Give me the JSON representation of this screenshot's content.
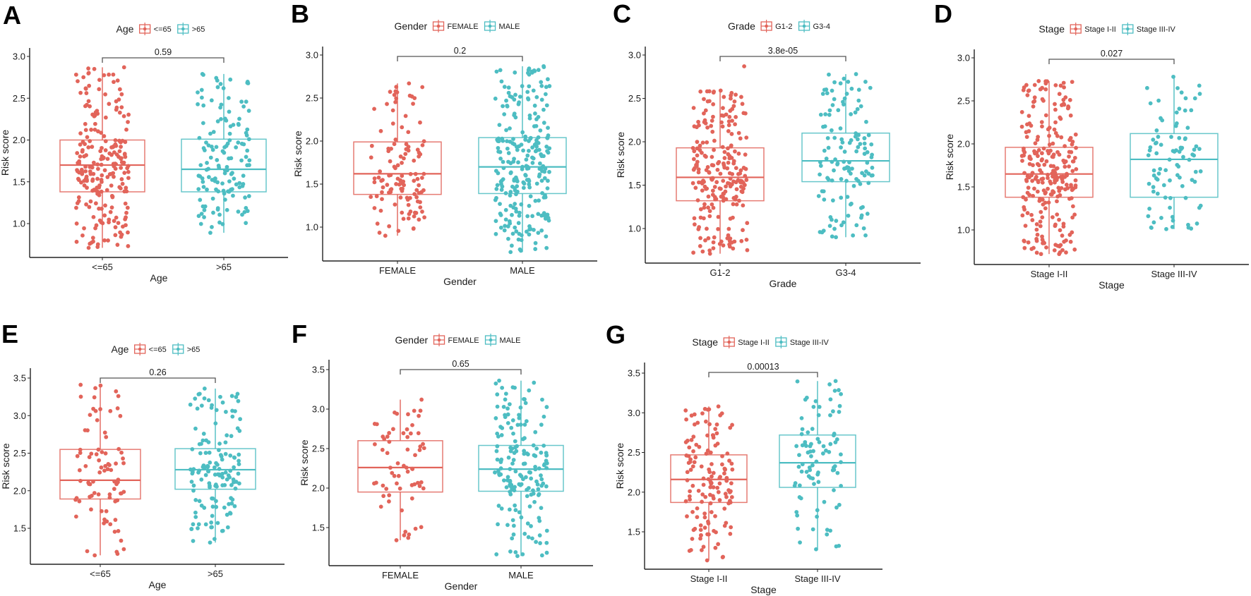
{
  "colors": {
    "group1": "#E2645A",
    "group2": "#4DBDC2",
    "axis": "#222222",
    "bracket": "#555555"
  },
  "chart_data": [
    {
      "panel": "A",
      "type": "box",
      "legend_title": "Age",
      "xlabel": "Age",
      "ylabel": "Risk score",
      "categories": [
        "<=65",
        ">65"
      ],
      "ylim": [
        0.6,
        3.1
      ],
      "yticks": [
        "1.0",
        "1.5",
        "2.0",
        "2.5",
        "3.0"
      ],
      "p_value": "0.59",
      "legend_position": "top",
      "series": [
        {
          "name": "<=65",
          "min": 0.71,
          "q1": 1.38,
          "median": 1.7,
          "q3": 2.0,
          "max": 2.87,
          "n_points": 230
        },
        {
          "name": ">65",
          "min": 0.89,
          "q1": 1.38,
          "median": 1.65,
          "q3": 2.01,
          "max": 2.79,
          "n_points": 140
        }
      ]
    },
    {
      "panel": "B",
      "type": "box",
      "legend_title": "Gender",
      "xlabel": "Gender",
      "ylabel": "Risk score",
      "categories": [
        "FEMALE",
        "MALE"
      ],
      "ylim": [
        0.6,
        3.1
      ],
      "yticks": [
        "1.0",
        "1.5",
        "2.0",
        "2.5",
        "3.0"
      ],
      "p_value": "0.2",
      "legend_position": "top",
      "series": [
        {
          "name": "FEMALE",
          "min": 0.9,
          "q1": 1.38,
          "median": 1.62,
          "q3": 1.99,
          "max": 2.67,
          "n_points": 120
        },
        {
          "name": "MALE",
          "min": 0.71,
          "q1": 1.39,
          "median": 1.7,
          "q3": 2.04,
          "max": 2.87,
          "n_points": 250
        }
      ]
    },
    {
      "panel": "C",
      "type": "box",
      "legend_title": "Grade",
      "xlabel": "Grade",
      "ylabel": "Risk score",
      "categories": [
        "G1-2",
        "G3-4"
      ],
      "ylim": [
        0.6,
        3.1
      ],
      "yticks": [
        "1.0",
        "1.5",
        "2.0",
        "2.5",
        "3.0"
      ],
      "p_value": "3.8e-05",
      "legend_position": "top",
      "series": [
        {
          "name": "G1-2",
          "min": 0.71,
          "q1": 1.32,
          "median": 1.59,
          "q3": 1.93,
          "max": 2.59,
          "outliers": [
            2.87
          ],
          "n_points": 230
        },
        {
          "name": "G3-4",
          "min": 0.9,
          "q1": 1.54,
          "median": 1.78,
          "q3": 2.1,
          "max": 2.78,
          "n_points": 130
        }
      ]
    },
    {
      "panel": "D",
      "type": "box",
      "legend_title": "Stage",
      "xlabel": "Stage",
      "ylabel": "Risk score",
      "categories": [
        "Stage I-II",
        "Stage III-IV"
      ],
      "ylim": [
        0.6,
        3.1
      ],
      "yticks": [
        "1.0",
        "1.5",
        "2.0",
        "2.5",
        "3.0"
      ],
      "p_value": "0.027",
      "legend_position": "top",
      "series": [
        {
          "name": "Stage I-II",
          "min": 0.72,
          "q1": 1.38,
          "median": 1.65,
          "q3": 1.96,
          "max": 2.73,
          "n_points": 260
        },
        {
          "name": "Stage III-IV",
          "min": 1.01,
          "q1": 1.38,
          "median": 1.82,
          "q3": 2.12,
          "max": 2.78,
          "n_points": 90
        }
      ]
    },
    {
      "panel": "E",
      "type": "box",
      "legend_title": "Age",
      "xlabel": "Age",
      "ylabel": "Risk score",
      "categories": [
        "<=65",
        ">65"
      ],
      "ylim": [
        1.02,
        3.63
      ],
      "yticks": [
        "1.5",
        "2.0",
        "2.5",
        "3.0",
        "3.5"
      ],
      "p_value": "0.26",
      "legend_position": "top",
      "series": [
        {
          "name": "<=65",
          "min": 1.14,
          "q1": 1.89,
          "median": 2.14,
          "q3": 2.55,
          "max": 3.41,
          "n_points": 85
        },
        {
          "name": ">65",
          "min": 1.31,
          "q1": 2.02,
          "median": 2.28,
          "q3": 2.56,
          "max": 3.36,
          "n_points": 140
        }
      ]
    },
    {
      "panel": "F",
      "type": "box",
      "legend_title": "Gender",
      "xlabel": "Gender",
      "ylabel": "Risk score",
      "categories": [
        "FEMALE",
        "MALE"
      ],
      "ylim": [
        1.02,
        3.63
      ],
      "yticks": [
        "1.5",
        "2.0",
        "2.5",
        "3.0",
        "3.5"
      ],
      "p_value": "0.65",
      "legend_position": "top",
      "series": [
        {
          "name": "FEMALE",
          "min": 1.34,
          "q1": 1.95,
          "median": 2.26,
          "q3": 2.6,
          "max": 3.12,
          "n_points": 65
        },
        {
          "name": "MALE",
          "min": 1.14,
          "q1": 1.96,
          "median": 2.24,
          "q3": 2.54,
          "max": 3.36,
          "n_points": 170
        }
      ]
    },
    {
      "panel": "G",
      "type": "box",
      "legend_title": "Stage",
      "xlabel": "Stage",
      "ylabel": "Risk score",
      "categories": [
        "Stage I-II",
        "Stage III-IV"
      ],
      "ylim": [
        1.02,
        3.63
      ],
      "yticks": [
        "1.5",
        "2.0",
        "2.5",
        "3.0",
        "3.5"
      ],
      "p_value": "0.00013",
      "legend_position": "top",
      "series": [
        {
          "name": "Stage I-II",
          "min": 1.14,
          "q1": 1.87,
          "median": 2.16,
          "q3": 2.47,
          "max": 3.08,
          "n_points": 140
        },
        {
          "name": "Stage III-IV",
          "min": 1.28,
          "q1": 2.06,
          "median": 2.37,
          "q3": 2.72,
          "max": 3.4,
          "n_points": 90
        }
      ]
    }
  ]
}
